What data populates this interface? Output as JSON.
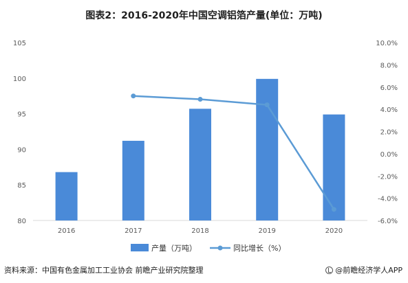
{
  "header": {
    "title": "图表2：2016-2020年中国空调铝箔产量(单位：万吨)"
  },
  "footer": {
    "source": "资料来源：中国有色金属加工工业协会 前瞻产业研究院整理",
    "brand": "@前瞻经济学人APP"
  },
  "colors": {
    "bar": "#4a8ad8",
    "line": "#5b9bd5",
    "axis": "#d9d9d9",
    "grid": "#e6e6e6"
  },
  "chart_data": {
    "type": "bar",
    "title": "图表2：2016-2020年中国空调铝箔产量(单位：万吨)",
    "categories": [
      "2016",
      "2017",
      "2018",
      "2019",
      "2020"
    ],
    "series": [
      {
        "name": "产量（万吨）",
        "type": "bar",
        "axis": "left",
        "values": [
          86.8,
          91.2,
          95.7,
          99.9,
          94.9
        ]
      },
      {
        "name": "同比增长（%）",
        "type": "line",
        "axis": "right",
        "values": [
          null,
          5.2,
          4.9,
          4.4,
          -5.0
        ]
      }
    ],
    "ylim_left": [
      80,
      105
    ],
    "yticks_left": [
      "80",
      "85",
      "90",
      "95",
      "100",
      "105"
    ],
    "ylim_right": [
      -6,
      10
    ],
    "yticks_right": [
      "-6.0%",
      "-4.0%",
      "-2.0%",
      "0.0%",
      "2.0%",
      "4.0%",
      "6.0%",
      "8.0%",
      "10.0%"
    ],
    "grid": false,
    "legend": "bottom"
  }
}
